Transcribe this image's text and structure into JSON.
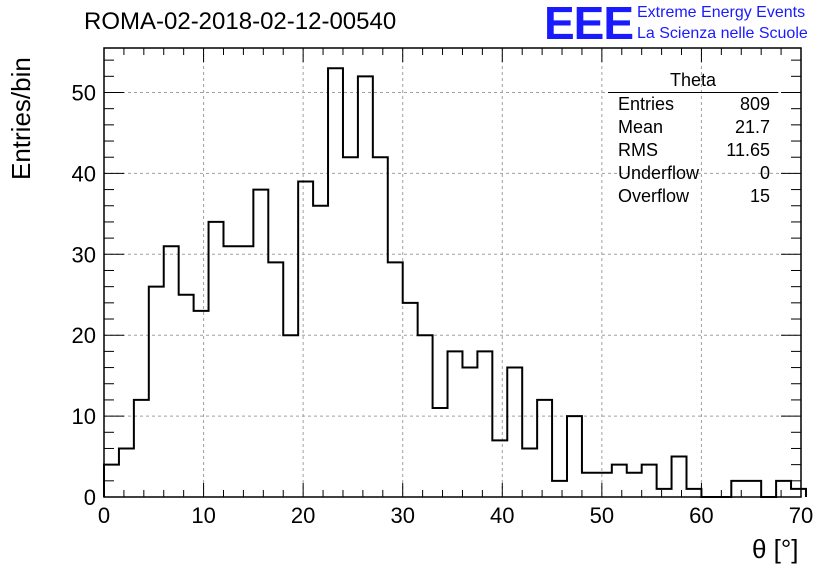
{
  "chart_data": {
    "type": "bar",
    "title": "ROMA-02-2018-02-12-00540",
    "xlabel": "θ [°]",
    "ylabel": "Entries/bin",
    "xlim": [
      0,
      70
    ],
    "ylim": [
      0,
      55.5
    ],
    "xticks": [
      "0",
      "10",
      "20",
      "30",
      "40",
      "50",
      "60",
      "70"
    ],
    "yticks": [
      "0",
      "10",
      "20",
      "30",
      "40",
      "50"
    ],
    "bin_width": 1.5,
    "bin_start": 0,
    "values": [
      4,
      6,
      12,
      26,
      31,
      25,
      23,
      34,
      31,
      31,
      38,
      29,
      20,
      39,
      36,
      53,
      42,
      52,
      42,
      29,
      24,
      20,
      11,
      18,
      16,
      18,
      7,
      16,
      6,
      12,
      2,
      10,
      3,
      3,
      4,
      3,
      4,
      1,
      5,
      1,
      0,
      0,
      2,
      2,
      0,
      2,
      1
    ],
    "grid": true,
    "stats": {
      "title": "Theta",
      "rows": [
        {
          "label": "Entries",
          "value": "809"
        },
        {
          "label": "Mean",
          "value": "21.7"
        },
        {
          "label": "RMS",
          "value": "11.65"
        },
        {
          "label": "Underflow",
          "value": "0"
        },
        {
          "label": "Overflow",
          "value": "15"
        }
      ]
    }
  },
  "logo": {
    "mark": "EEE",
    "line1": "Extreme Energy Events",
    "line2": "La Scienza nelle Scuole"
  },
  "colors": {
    "line": "#000000",
    "grid": "#a0a0a0",
    "logo": "#1a1aff"
  }
}
